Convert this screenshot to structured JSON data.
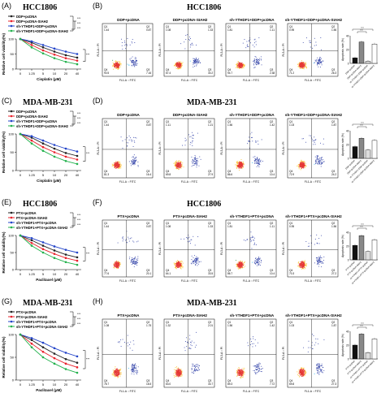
{
  "rows": [
    {
      "left_label": "(A)",
      "left_title": "HCC1806",
      "right_label": "(B)",
      "right_title": "HCC1806",
      "legend": [
        "DDP+pcDNA",
        "DDP+pcDNA-SIAH2",
        "sh-YTHDF1+DDP+pcDNA",
        "sh-YTHDF1+DDP+pcDNA-SIAH2"
      ],
      "xlabel": "Cisplatin (μM)",
      "ylabel": "Relative cell viability(%)",
      "flow_titles": [
        "DDP+pcDNA",
        "DDP+pcDNA-SIAH2",
        "sh-YTHDF1+DDP+pcDNA",
        "sh-YTHDF1+DDP+pcDNA-SIAH2"
      ],
      "bar_ylabel": "Apoptosis rate (%)"
    },
    {
      "left_label": "(C)",
      "left_title": "MDA-MB-231",
      "right_label": "(D)",
      "right_title": "MDA-MB-231",
      "legend": [
        "DDP+pcDNA",
        "DDP+pcDNA-SIAH2",
        "sh-YTHDF1+DDP+pcDNA",
        "sh-YTHDF1+DDP+pcDNA-SIAH2"
      ],
      "xlabel": "Cisplatin (μM)",
      "ylabel": "Relative cell viability(%)",
      "flow_titles": [
        "DDP+pcDNA",
        "DDP+pcDNA-SIAH2",
        "sh-YTHDF1+DDP+pcDNA",
        "sh-YTHDF1+DDP+pcDNA-SIAH2"
      ],
      "bar_ylabel": "Apoptosis rate (%)"
    },
    {
      "left_label": "(E)",
      "left_title": "HCC1806",
      "right_label": "(F)",
      "right_title": "HCC1806",
      "legend": [
        "PTX+pcDNA",
        "PTX+pcDNA-SIAH2",
        "sh-YTHDF1+PTX+pcDNA",
        "sh-YTHDF1+PTX+pcDNA-SIAH2"
      ],
      "xlabel": "Paclitaxel (μM)",
      "ylabel": "Relative cell viability(%)",
      "flow_titles": [
        "PTX+pcDNA",
        "PTX+pcDNA-SIAH2",
        "sh-YTHDF1+PTX+pcDNA",
        "sh-YTHDF1+PTX+pcDNA-SIAH2"
      ],
      "bar_ylabel": "Apoptosis rate (%)"
    },
    {
      "left_label": "(G)",
      "left_title": "MDA-MB-231",
      "right_label": "(H)",
      "right_title": "MDA-MB-231",
      "legend": [
        "PTX+pcDNA",
        "PTX+pcDNA-SIAH2",
        "sh-YTHDF1+PTX+pcDNA",
        "sh-YTHDF1+PTX+pcDNA-SIAH2"
      ],
      "xlabel": "Paclitaxel (μM)",
      "ylabel": "Relative cell viability(%)",
      "flow_titles": [
        "PTX+pcDNA",
        "PTX+pcDNA-SIAH2",
        "sh-YTHDF1+PTX+pcDNA",
        "sh-YTHDF1+PTX+pcDNA-SIAH2"
      ],
      "bar_ylabel": "Apoptosis rate (%)"
    }
  ],
  "flow_axis": {
    "x": "FL1-A :: FITC",
    "y": "FL3-A :: PI"
  },
  "quadrants": [
    [
      [
        "1.44",
        "0.87",
        "90.5",
        "7.16"
      ],
      [
        "1.08",
        "1.33",
        "67.4",
        "30.2"
      ],
      [
        "1.81",
        "1.11",
        "94.7",
        "2.38"
      ],
      [
        "0.95",
        "1.56",
        "71.2",
        "26.3"
      ]
    ],
    [
      [
        "1.44",
        "0.87",
        "81.3",
        "16.4"
      ],
      [
        "1.11",
        "1.21",
        "69.8",
        "27.9"
      ],
      [
        "1.56",
        "1.42",
        "86.6",
        "10.4"
      ],
      [
        "1.03",
        "1.87",
        "72.9",
        "24.2"
      ]
    ],
    [
      [
        "1.44",
        "0.87",
        "77.6",
        "20.1"
      ],
      [
        "1.08",
        "1.33",
        "64.1",
        "33.5"
      ],
      [
        "1.81",
        "1.11",
        "86.7",
        "10.4"
      ],
      [
        "0.95",
        "1.56",
        "70.3",
        "27.2"
      ]
    ],
    [
      [
        "1.08",
        "1.75",
        "78.7",
        "18.5"
      ],
      [
        "1.32",
        "2.01",
        "63.0",
        "33.7"
      ],
      [
        "1.56",
        "1.42",
        "89.3",
        "7.72"
      ],
      [
        "1.03",
        "1.87",
        "69.8",
        "27.3"
      ]
    ]
  ],
  "chart_data": [
    {
      "type": "line",
      "x": [
        0,
        1.25,
        5,
        10,
        20,
        40
      ],
      "series": [
        {
          "name": "DDP+pcDNA",
          "color": "#222222",
          "values": [
            100,
            88,
            72,
            58,
            46,
            38
          ]
        },
        {
          "name": "DDP+pcDNA-SIAH2",
          "color": "#e8202a",
          "values": [
            100,
            80,
            62,
            48,
            36,
            28
          ]
        },
        {
          "name": "sh-YTHDF1+DDP+pcDNA",
          "color": "#2243c8",
          "values": [
            100,
            92,
            80,
            68,
            58,
            50
          ]
        },
        {
          "name": "sh-YTHDF1+DDP+pcDNA-SIAH2",
          "color": "#22b14c",
          "values": [
            100,
            72,
            52,
            36,
            24,
            16
          ]
        }
      ],
      "ylim": [
        0,
        100
      ]
    },
    {
      "type": "line",
      "x": [
        0,
        1.25,
        5,
        10,
        20,
        40
      ],
      "series": [
        {
          "name": "DDP+pcDNA",
          "color": "#222222",
          "values": [
            100,
            90,
            74,
            60,
            48,
            40
          ]
        },
        {
          "name": "DDP+pcDNA-SIAH2",
          "color": "#e8202a",
          "values": [
            100,
            82,
            64,
            50,
            38,
            30
          ]
        },
        {
          "name": "sh-YTHDF1+DDP+pcDNA",
          "color": "#2243c8",
          "values": [
            100,
            94,
            82,
            70,
            60,
            52
          ]
        },
        {
          "name": "sh-YTHDF1+DDP+pcDNA-SIAH2",
          "color": "#22b14c",
          "values": [
            100,
            74,
            54,
            38,
            26,
            18
          ]
        }
      ],
      "ylim": [
        0,
        100
      ]
    },
    {
      "type": "line",
      "x": [
        0,
        1.25,
        5,
        10,
        20,
        40
      ],
      "series": [
        {
          "name": "PTX+pcDNA",
          "color": "#222222",
          "values": [
            100,
            86,
            70,
            56,
            44,
            36
          ]
        },
        {
          "name": "PTX+pcDNA-SIAH2",
          "color": "#e8202a",
          "values": [
            100,
            78,
            60,
            46,
            34,
            26
          ]
        },
        {
          "name": "sh-YTHDF1+PTX+pcDNA",
          "color": "#2243c8",
          "values": [
            100,
            92,
            80,
            68,
            58,
            50
          ]
        },
        {
          "name": "sh-YTHDF1+PTX+pcDNA-SIAH2",
          "color": "#22b14c",
          "values": [
            100,
            70,
            50,
            34,
            22,
            14
          ]
        }
      ],
      "ylim": [
        0,
        100
      ]
    },
    {
      "type": "line",
      "x": [
        0,
        1.25,
        5,
        10,
        20,
        40
      ],
      "series": [
        {
          "name": "PTX+pcDNA",
          "color": "#222222",
          "values": [
            100,
            88,
            72,
            58,
            46,
            38
          ]
        },
        {
          "name": "PTX+pcDNA-SIAH2",
          "color": "#e8202a",
          "values": [
            100,
            80,
            62,
            48,
            36,
            28
          ]
        },
        {
          "name": "sh-YTHDF1+PTX+pcDNA",
          "color": "#2243c8",
          "values": [
            100,
            92,
            82,
            70,
            60,
            52
          ]
        },
        {
          "name": "sh-YTHDF1+PTX+pcDNA-SIAH2",
          "color": "#22b14c",
          "values": [
            100,
            72,
            50,
            36,
            24,
            16
          ]
        }
      ],
      "ylim": [
        0,
        100
      ]
    },
    {
      "type": "bar",
      "categories": [
        "DDP+pcDNA",
        "DDP+pcDNA-SIAH2",
        "sh-YTHDF1+DDP+pcDNA",
        "sh-YTHDF1+DDP+pcDNA-SIAH2"
      ],
      "values": [
        8,
        31,
        3,
        28
      ],
      "colors": [
        "#111111",
        "#888888",
        "#dddddd",
        "#ffffff"
      ],
      "ylim": [
        0,
        40
      ]
    },
    {
      "type": "bar",
      "categories": [
        "DDP+pcDNA",
        "DDP+pcDNA-SIAH2",
        "sh-YTHDF1+DDP+pcDNA",
        "sh-YTHDF1+DDP+pcDNA-SIAH2"
      ],
      "values": [
        17,
        29,
        12,
        26
      ],
      "colors": [
        "#111111",
        "#888888",
        "#dddddd",
        "#ffffff"
      ],
      "ylim": [
        0,
        40
      ]
    },
    {
      "type": "bar",
      "categories": [
        "PTX+pcDNA",
        "PTX+pcDNA-SIAH2",
        "sh-YTHDF1+PTX+pcDNA",
        "sh-YTHDF1+PTX+pcDNA-SIAH2"
      ],
      "values": [
        21,
        35,
        12,
        29
      ],
      "colors": [
        "#111111",
        "#888888",
        "#dddddd",
        "#ffffff"
      ],
      "ylim": [
        0,
        40
      ]
    },
    {
      "type": "bar",
      "categories": [
        "PTX+pcDNA",
        "PTX+pcDNA-SIAH2",
        "sh-YTHDF1+PTX+pcDNA",
        "sh-YTHDF1+PTX+pcDNA-SIAH2"
      ],
      "values": [
        20,
        36,
        9,
        29
      ],
      "colors": [
        "#111111",
        "#888888",
        "#dddddd",
        "#ffffff"
      ],
      "ylim": [
        0,
        40
      ]
    }
  ]
}
